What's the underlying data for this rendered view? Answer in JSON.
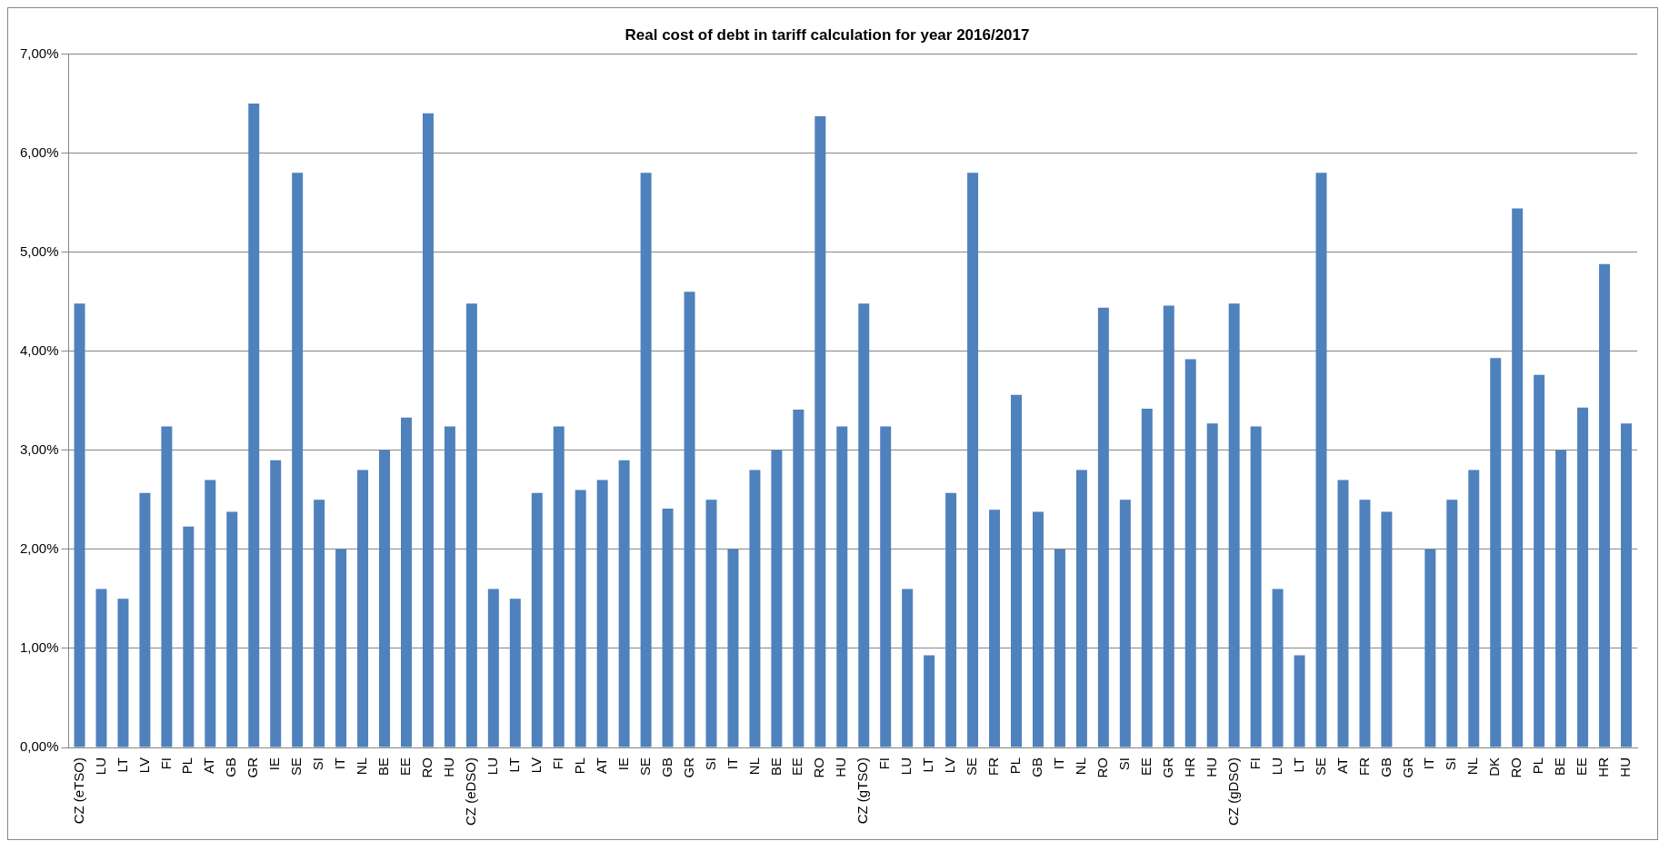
{
  "chart_data": {
    "type": "bar",
    "title": "Real cost of debt in tariff calculation for year 2016/2017",
    "categories": [
      "CZ (eTSO)",
      "LU",
      "LT",
      "LV",
      "FI",
      "PL",
      "AT",
      "GB",
      "GR",
      "IE",
      "SE",
      "SI",
      "IT",
      "NL",
      "BE",
      "EE",
      "RO",
      "HU",
      "CZ (eDSO)",
      "LU",
      "LT",
      "LV",
      "FI",
      "PL",
      "AT",
      "IE",
      "SE",
      "GB",
      "GR",
      "SI",
      "IT",
      "NL",
      "BE",
      "EE",
      "RO",
      "HU",
      "CZ (gTSO)",
      "FI",
      "LU",
      "LT",
      "LV",
      "SE",
      "FR",
      "PL",
      "GB",
      "IT",
      "NL",
      "RO",
      "SI",
      "EE",
      "GR",
      "HR",
      "HU",
      "CZ (gDSO)",
      "FI",
      "LU",
      "LT",
      "SE",
      "AT",
      "FR",
      "GB",
      "GR",
      "IT",
      "SI",
      "NL",
      "DK",
      "RO",
      "PL",
      "BE",
      "EE",
      "HR",
      "HU"
    ],
    "values": [
      4.48,
      1.6,
      1.5,
      2.57,
      3.24,
      2.23,
      2.7,
      2.38,
      6.5,
      2.9,
      5.8,
      2.5,
      2.0,
      2.8,
      3.0,
      3.33,
      6.4,
      3.24,
      4.48,
      1.6,
      1.5,
      2.57,
      3.24,
      2.6,
      2.7,
      2.9,
      5.8,
      2.41,
      4.6,
      2.5,
      2.0,
      2.8,
      3.0,
      3.41,
      6.37,
      3.24,
      4.48,
      3.24,
      1.6,
      0.93,
      2.57,
      5.8,
      2.4,
      3.56,
      2.38,
      2.0,
      2.8,
      4.44,
      2.5,
      3.42,
      4.46,
      3.92,
      3.27,
      4.48,
      3.24,
      1.6,
      0.93,
      5.8,
      2.7,
      2.5,
      2.38,
      null,
      2.0,
      2.5,
      2.8,
      3.93,
      5.44,
      3.76,
      3.0,
      3.43,
      4.88,
      3.27
    ],
    "color": "#4f81bd",
    "ylim": [
      0,
      7
    ],
    "yticks": [
      {
        "value": 0,
        "label": "0,00%"
      },
      {
        "value": 1,
        "label": "1,00%"
      },
      {
        "value": 2,
        "label": "2,00%"
      },
      {
        "value": 3,
        "label": "3,00%"
      },
      {
        "value": 4,
        "label": "4,00%"
      },
      {
        "value": 5,
        "label": "5,00%"
      },
      {
        "value": 6,
        "label": "6,00%"
      },
      {
        "value": 7,
        "label": "7,00%"
      }
    ],
    "grid": "y",
    "legend": false
  }
}
